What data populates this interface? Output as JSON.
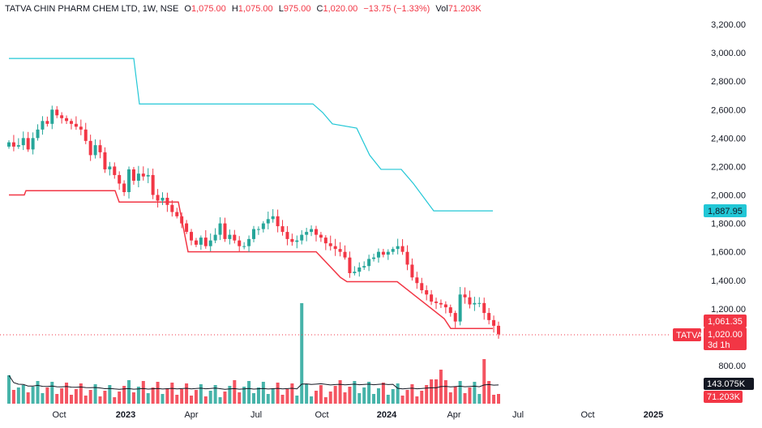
{
  "header": {
    "symbol": "TATVA CHIN PHARM CHEM LTD, 1W, NSE",
    "o_label": "O",
    "o_value": "1,075.00",
    "h_label": "H",
    "h_value": "1,075.00",
    "l_label": "L",
    "l_value": "975.00",
    "c_label": "C",
    "c_value": "1,020.00",
    "change": "−13.75 (−1.33%)",
    "vol_label": "Vol",
    "vol_value": "71.203K"
  },
  "tags": {
    "ticker": "TATVA",
    "last_price": "1,020.00",
    "countdown": "3d 1h",
    "upper_line_value": "1,887.95",
    "lower_line_value": "1,061.35",
    "vol_ma_value": "143.075K",
    "volume_value": "71.203K"
  },
  "colors": {
    "up": "#26a69a",
    "down": "#f23645",
    "upper_line": "#22c7d6",
    "lower_line": "#f23645",
    "vol_ma": "#131722"
  },
  "chart_data": {
    "type": "candlestick",
    "title": "TATVA CHIN PHARM CHEM LTD, 1W, NSE",
    "x_axis_labels": [
      "Oct",
      "2023",
      "Apr",
      "Jul",
      "Oct",
      "2024",
      "Apr",
      "Jul",
      "Oct",
      "2025"
    ],
    "y_axis_labels": [
      "800.00",
      "1,000.00",
      "1,200.00",
      "1,400.00",
      "1,600.00",
      "1,800.00",
      "2,000.00",
      "2,200.00",
      "2,400.00",
      "2,600.00",
      "2,800.00",
      "3,000.00",
      "3,200.00"
    ],
    "ylim": [
      760,
      3260
    ],
    "ohlc_approx_close": [
      2370,
      2340,
      2350,
      2400,
      2320,
      2400,
      2460,
      2520,
      2500,
      2600,
      2560,
      2540,
      2520,
      2500,
      2480,
      2460,
      2380,
      2280,
      2350,
      2300,
      2180,
      2200,
      2140,
      2080,
      2020,
      2180,
      2100,
      2150,
      2130,
      2140,
      2000,
      1960,
      1980,
      1930,
      1880,
      1850,
      1800,
      1740,
      1680,
      1650,
      1700,
      1640,
      1680,
      1720,
      1800,
      1690,
      1720,
      1680,
      1640,
      1640,
      1690,
      1760,
      1760,
      1800,
      1830,
      1850,
      1780,
      1740,
      1690,
      1670,
      1680,
      1720,
      1740,
      1760,
      1720,
      1700,
      1660,
      1640,
      1620,
      1600,
      1560,
      1450,
      1460,
      1490,
      1500,
      1550,
      1560,
      1600,
      1580,
      1600,
      1620,
      1640,
      1600,
      1510,
      1420,
      1380,
      1330,
      1300,
      1250,
      1240,
      1230,
      1210,
      1170,
      1110,
      1300,
      1280,
      1230,
      1240,
      1240,
      1170,
      1120,
      1080,
      1020
    ],
    "upper_band": [
      {
        "x": "Jul 2022",
        "y": 2960
      },
      {
        "x": "Dec 2022",
        "y": 2960
      },
      {
        "x": "Dec 2022",
        "y": 2640
      },
      {
        "x": "Aug 2023",
        "y": 2640
      },
      {
        "x": "Oct 2023",
        "y": 2500
      },
      {
        "x": "Dec 2023",
        "y": 2180
      },
      {
        "x": "Jan 2024",
        "y": 2080
      },
      {
        "x": "Mar 2024",
        "y": 1888
      },
      {
        "x": "Jun 2024",
        "y": 1888
      }
    ],
    "lower_band": [
      {
        "x": "Jul 2022",
        "y": 2000
      },
      {
        "x": "Jan 2023",
        "y": 2030
      },
      {
        "x": "Jan 2023",
        "y": 1950
      },
      {
        "x": "Mar 2023",
        "y": 1880
      },
      {
        "x": "Apr 2023",
        "y": 1600
      },
      {
        "x": "Sep 2023",
        "y": 1600
      },
      {
        "x": "Nov 2023",
        "y": 1390
      },
      {
        "x": "Mar 2024",
        "y": 1061
      },
      {
        "x": "Jun 2024",
        "y": 1061
      }
    ],
    "volume_spikes_k": [
      {
        "x": "Sep 2023",
        "v": 1200
      },
      {
        "x": "Apr 2024",
        "v": 430
      },
      {
        "x": "Jun 2024",
        "v": 430
      }
    ],
    "last_close": 1020,
    "ma_last": 143.075,
    "volume_last": 71.203
  }
}
